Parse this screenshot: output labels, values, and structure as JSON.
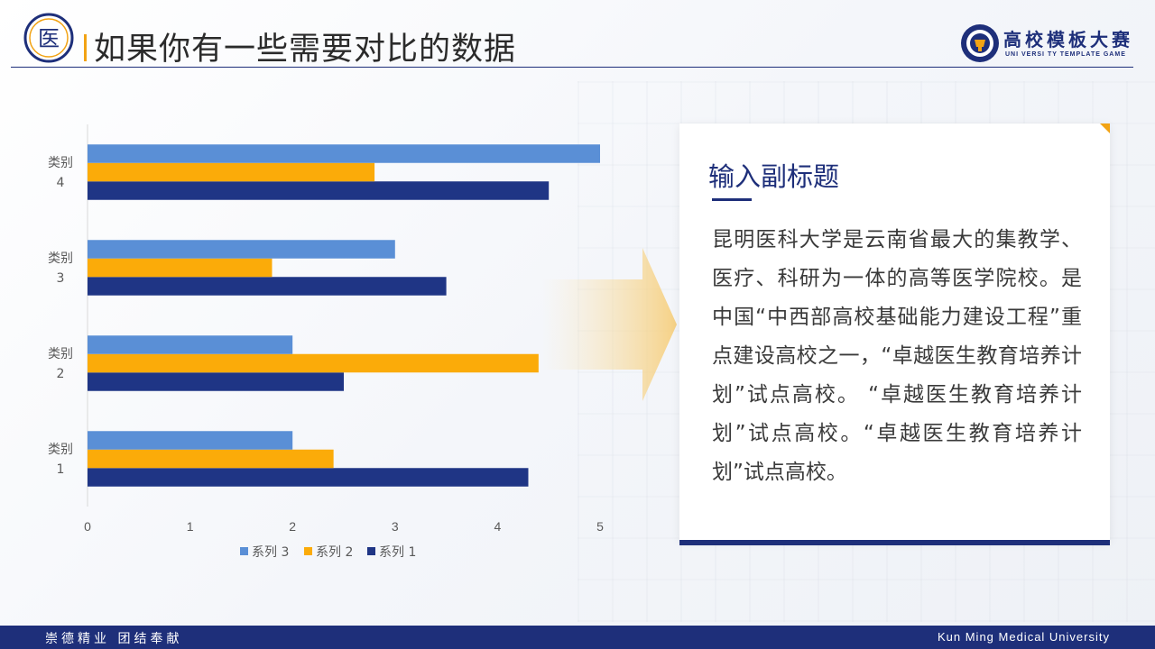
{
  "header": {
    "title": "如果你有一些需要对比的数据",
    "logo_left_text": "医",
    "logo_right_cn": "高校模板大赛",
    "logo_right_en": "UNI VERSI TY   TEMPLATE   GAME"
  },
  "card": {
    "subtitle": "输入副标题",
    "body": "昆明医科大学是云南省最大的集教学、医疗、科研为一体的高等医学院校。是中国“中西部高校基础能力建设工程”重点建设高校之一，“卓越医生教育培养计划”试点高校。 “卓越医生教育培养计划”试点高校。“卓越医生教育培养计划”试点高校。"
  },
  "footer": {
    "left": "崇德精业  团结奉献",
    "right": "Kun Ming Medical University"
  },
  "colors": {
    "navy": "#1e2f7a",
    "accent": "#f2a314",
    "series1": "#1f3585",
    "series2": "#fbab09",
    "series3": "#5a8fd6"
  },
  "chart_data": {
    "type": "bar",
    "orientation": "horizontal",
    "categories": [
      "类别 1",
      "类别 2",
      "类别 3",
      "类别 4"
    ],
    "series": [
      {
        "name": "系列 1",
        "values": [
          4.3,
          2.5,
          3.5,
          4.5
        ]
      },
      {
        "name": "系列 2",
        "values": [
          2.4,
          4.4,
          1.8,
          2.8
        ]
      },
      {
        "name": "系列 3",
        "values": [
          2,
          2,
          3,
          5
        ]
      }
    ],
    "xlim": [
      0,
      5
    ],
    "xticks": [
      "0",
      "1",
      "2",
      "3",
      "4",
      "5"
    ],
    "grid": false,
    "legend": "bottom"
  }
}
